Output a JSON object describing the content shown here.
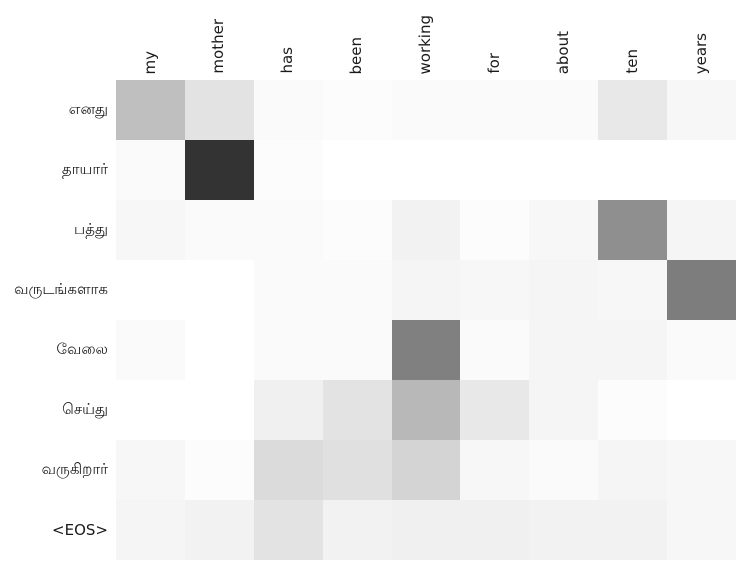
{
  "chart_data": {
    "type": "heatmap",
    "title": "",
    "xlabel": "",
    "ylabel": "",
    "x_categories": [
      "my",
      "mother",
      "has",
      "been",
      "working",
      "for",
      "about",
      "ten",
      "years"
    ],
    "y_categories": [
      "எனது",
      "தாயார்",
      "பத்து",
      "வருடங்களாக",
      "வேலை",
      "செய்து",
      "வருகிறார்",
      "<EOS>"
    ],
    "values": [
      [
        0.25,
        0.11,
        0.02,
        0.01,
        0.02,
        0.02,
        0.02,
        0.09,
        0.03
      ],
      [
        0.02,
        0.8,
        0.01,
        0.0,
        0.0,
        0.0,
        0.0,
        0.0,
        0.0
      ],
      [
        0.03,
        0.02,
        0.02,
        0.01,
        0.05,
        0.01,
        0.03,
        0.44,
        0.04
      ],
      [
        0.0,
        0.0,
        0.02,
        0.02,
        0.04,
        0.03,
        0.04,
        0.03,
        0.51
      ],
      [
        0.02,
        0.0,
        0.02,
        0.02,
        0.5,
        0.02,
        0.04,
        0.04,
        0.02
      ],
      [
        0.0,
        0.0,
        0.06,
        0.11,
        0.28,
        0.09,
        0.04,
        0.01,
        0.0
      ],
      [
        0.03,
        0.01,
        0.14,
        0.12,
        0.17,
        0.03,
        0.02,
        0.04,
        0.03
      ],
      [
        0.04,
        0.05,
        0.11,
        0.05,
        0.06,
        0.06,
        0.05,
        0.05,
        0.03
      ]
    ],
    "value_range": [
      0,
      1
    ],
    "grid": false,
    "legend_position": "none",
    "color_low": "#ffffff",
    "color_high": "#000000"
  }
}
